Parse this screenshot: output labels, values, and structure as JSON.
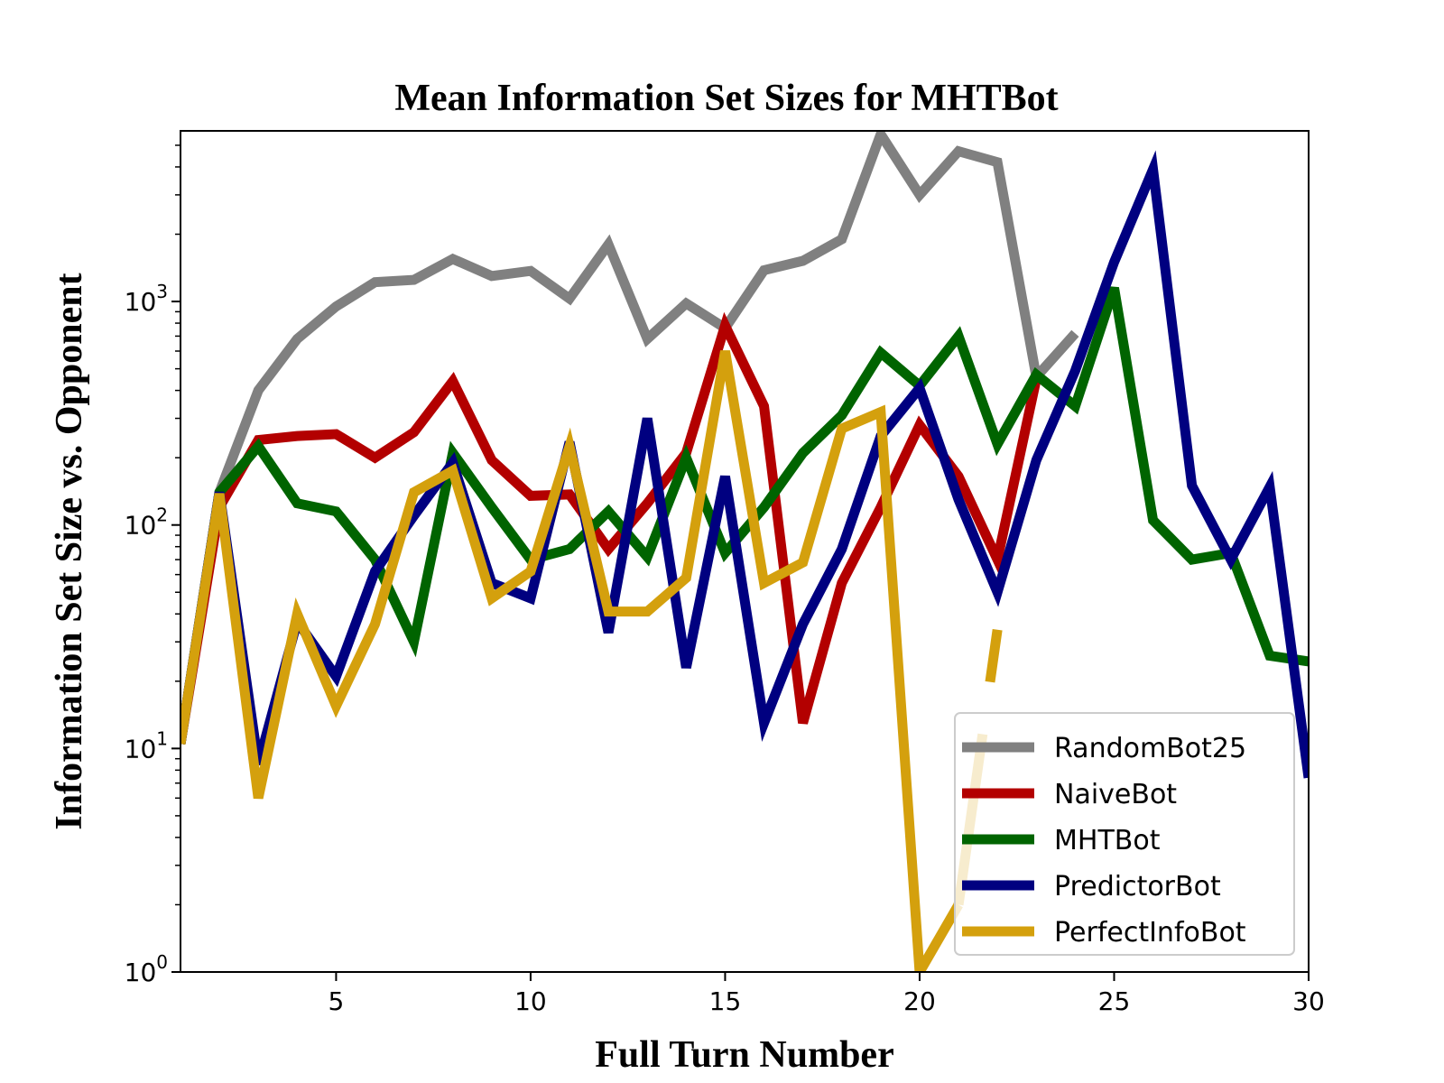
{
  "chart_data": {
    "type": "line",
    "title": "Mean Information Set Sizes for MHTBot",
    "xlabel": "Full Turn Number",
    "ylabel": "Information Set Size vs. Opponent",
    "y_scale": "log",
    "xlim": [
      1,
      30
    ],
    "ylim": [
      1,
      5800
    ],
    "x_ticks": [
      5,
      10,
      15,
      20,
      25,
      30
    ],
    "y_ticks": [
      {
        "value": 1,
        "base": "10",
        "exp": "0"
      },
      {
        "value": 10,
        "base": "10",
        "exp": "1"
      },
      {
        "value": 100,
        "base": "10",
        "exp": "2"
      },
      {
        "value": 1000,
        "base": "10",
        "exp": "3"
      }
    ],
    "legend_position": "lower-right",
    "grid": false,
    "series": [
      {
        "name": "RandomBot25",
        "color": "#808080",
        "x": [
          1,
          2,
          3,
          4,
          5,
          6,
          7,
          8,
          9,
          10,
          11,
          12,
          13,
          14,
          15,
          16,
          17,
          18,
          19,
          20,
          21,
          22,
          23,
          24
        ],
        "values": [
          10.5,
          140,
          400,
          680,
          950,
          1220,
          1250,
          1550,
          1300,
          1370,
          1030,
          1800,
          680,
          980,
          760,
          1380,
          1520,
          1900,
          5600,
          3000,
          4700,
          4200,
          460,
          720
        ]
      },
      {
        "name": "NaiveBot",
        "color": "#b30000",
        "x": [
          1,
          2,
          3,
          4,
          5,
          6,
          7,
          8,
          9,
          10,
          11,
          12,
          13,
          14,
          15,
          16,
          17,
          18,
          19,
          20,
          21,
          22,
          23
        ],
        "values": [
          10.5,
          120,
          240,
          250,
          255,
          200,
          260,
          440,
          195,
          135,
          137,
          78,
          125,
          210,
          780,
          340,
          13,
          55,
          120,
          280,
          165,
          70,
          450
        ]
      },
      {
        "name": "MHTBot",
        "color": "#006400",
        "x": [
          1,
          2,
          3,
          4,
          5,
          6,
          7,
          8,
          9,
          10,
          11,
          12,
          13,
          14,
          15,
          16,
          17,
          18,
          19,
          20,
          21,
          22,
          23,
          24,
          25,
          26,
          27,
          28,
          29,
          30
        ],
        "values": [
          10.5,
          140,
          225,
          125,
          115,
          70,
          30,
          210,
          120,
          70,
          78,
          115,
          72,
          200,
          75,
          120,
          210,
          310,
          590,
          420,
          700,
          230,
          470,
          340,
          1150,
          105,
          70,
          75,
          26,
          24.5
        ]
      },
      {
        "name": "PredictorBot",
        "color": "#000080",
        "x": [
          1,
          2,
          3,
          4,
          5,
          6,
          7,
          8,
          9,
          10,
          11,
          12,
          13,
          14,
          15,
          16,
          17,
          18,
          19,
          20,
          21,
          22,
          23,
          24,
          25,
          26,
          27,
          28,
          29,
          30
        ],
        "values": [
          10.5,
          140,
          8.5,
          37,
          21,
          62,
          110,
          190,
          55,
          47,
          235,
          33,
          300,
          23,
          165,
          13,
          36,
          78,
          250,
          410,
          130,
          50,
          195,
          490,
          1500,
          3900,
          150,
          70,
          148,
          7.4
        ]
      },
      {
        "name": "PerfectInfoBot",
        "color": "#d4a00d",
        "x": [
          1,
          2,
          3,
          4,
          5,
          6,
          7,
          8,
          9,
          10,
          11,
          12,
          13,
          14,
          15,
          16,
          17,
          18,
          19,
          20,
          21,
          22
        ],
        "values": [
          10.5,
          138,
          6,
          40,
          15.5,
          36,
          140,
          175,
          47,
          62,
          225,
          41,
          41,
          58,
          600,
          55,
          68,
          270,
          320,
          1.0,
          2.0,
          34
        ],
        "gap_before_last": true
      }
    ]
  }
}
